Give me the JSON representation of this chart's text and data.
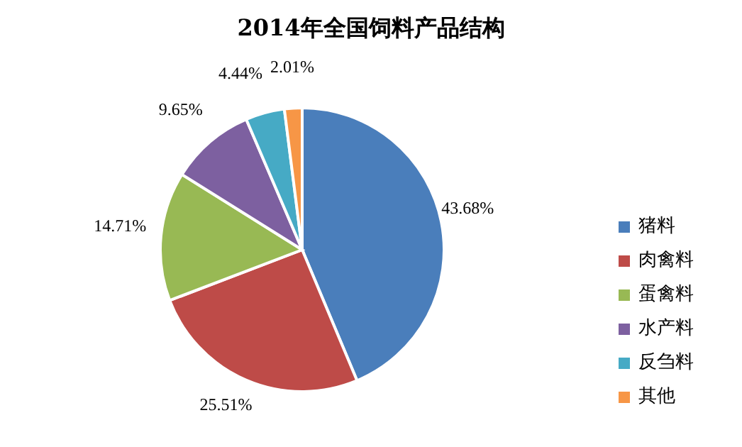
{
  "chart_data": {
    "type": "pie",
    "title": "2014年全国饲料产品结构",
    "categories": [
      "猪料",
      "肉禽料",
      "蛋禽料",
      "水产料",
      "反刍料",
      "其他"
    ],
    "values": [
      43.68,
      25.51,
      14.71,
      9.65,
      4.44,
      2.01
    ],
    "value_labels": [
      "43.68%",
      "25.51%",
      "14.71%",
      "9.65%",
      "4.44%",
      "2.01%"
    ],
    "colors": [
      "#4a7ebb",
      "#be4b48",
      "#98b954",
      "#7d60a0",
      "#46aac5",
      "#f79646"
    ],
    "legend": "right"
  }
}
